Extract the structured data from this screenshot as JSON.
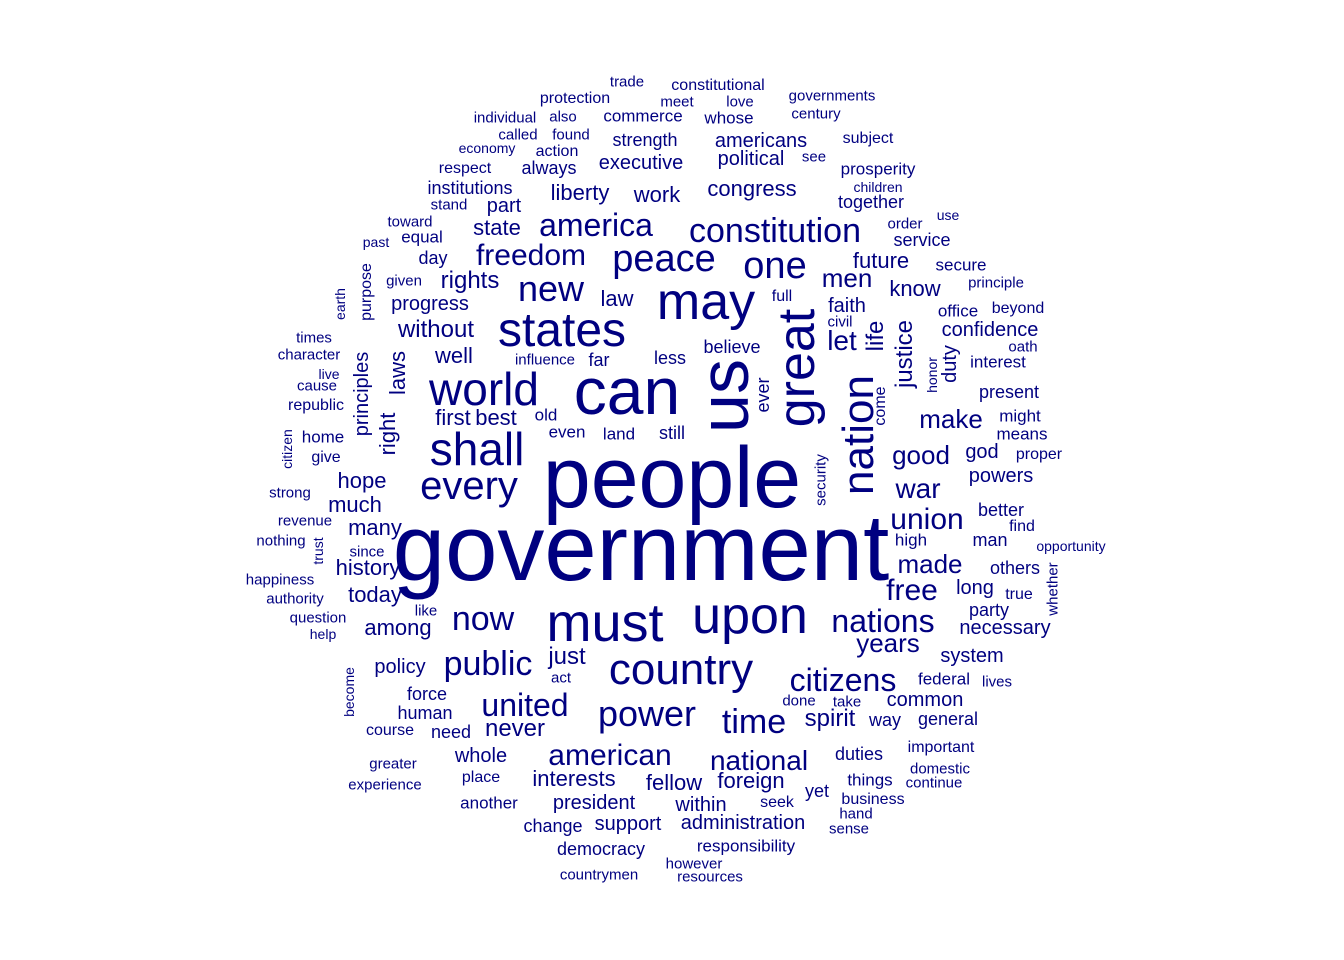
{
  "color": "#000080",
  "words": [
    {
      "text": "government",
      "weight": 100
    },
    {
      "text": "people",
      "weight": 92
    },
    {
      "text": "can",
      "weight": 68
    },
    {
      "text": "us",
      "weight": 64
    },
    {
      "text": "must",
      "weight": 56
    },
    {
      "text": "may",
      "weight": 52
    },
    {
      "text": "states",
      "weight": 50
    },
    {
      "text": "upon",
      "weight": 52
    },
    {
      "text": "great",
      "weight": 52
    },
    {
      "text": "nation",
      "weight": 46
    },
    {
      "text": "world",
      "weight": 46
    },
    {
      "text": "shall",
      "weight": 46
    },
    {
      "text": "country",
      "weight": 44
    },
    {
      "text": "every",
      "weight": 40
    },
    {
      "text": "one",
      "weight": 38
    },
    {
      "text": "peace",
      "weight": 38
    },
    {
      "text": "new",
      "weight": 36
    },
    {
      "text": "power",
      "weight": 36
    },
    {
      "text": "constitution",
      "weight": 34
    },
    {
      "text": "public",
      "weight": 34
    },
    {
      "text": "now",
      "weight": 34
    },
    {
      "text": "time",
      "weight": 34
    },
    {
      "text": "citizens",
      "weight": 32
    },
    {
      "text": "nations",
      "weight": 32
    },
    {
      "text": "america",
      "weight": 32
    },
    {
      "text": "freedom",
      "weight": 30
    },
    {
      "text": "united",
      "weight": 32
    },
    {
      "text": "american",
      "weight": 30
    },
    {
      "text": "national",
      "weight": 28
    },
    {
      "text": "union",
      "weight": 28
    },
    {
      "text": "free",
      "weight": 30
    },
    {
      "text": "war",
      "weight": 28
    },
    {
      "text": "made",
      "weight": 26
    },
    {
      "text": "good",
      "weight": 26
    },
    {
      "text": "make",
      "weight": 26
    },
    {
      "text": "let",
      "weight": 28
    },
    {
      "text": "justice",
      "weight": 24
    },
    {
      "text": "life",
      "weight": 24
    },
    {
      "text": "men",
      "weight": 26
    },
    {
      "text": "years",
      "weight": 26
    },
    {
      "text": "spirit",
      "weight": 24
    },
    {
      "text": "rights",
      "weight": 24
    },
    {
      "text": "laws",
      "weight": 22
    },
    {
      "text": "right",
      "weight": 22
    },
    {
      "text": "principles",
      "weight": 20
    },
    {
      "text": "just",
      "weight": 24
    },
    {
      "text": "never",
      "weight": 24
    },
    {
      "text": "hope",
      "weight": 22
    },
    {
      "text": "much",
      "weight": 22
    },
    {
      "text": "many",
      "weight": 22
    },
    {
      "text": "history",
      "weight": 22
    },
    {
      "text": "today",
      "weight": 22
    },
    {
      "text": "among",
      "weight": 22
    },
    {
      "text": "liberty",
      "weight": 22
    },
    {
      "text": "work",
      "weight": 22
    },
    {
      "text": "congress",
      "weight": 22
    },
    {
      "text": "executive",
      "weight": 20
    },
    {
      "text": "political",
      "weight": 20
    },
    {
      "text": "americans",
      "weight": 20
    },
    {
      "text": "strength",
      "weight": 18
    },
    {
      "text": "institutions",
      "weight": 18
    },
    {
      "text": "state",
      "weight": 22
    },
    {
      "text": "part",
      "weight": 20
    },
    {
      "text": "law",
      "weight": 22
    },
    {
      "text": "future",
      "weight": 22
    },
    {
      "text": "know",
      "weight": 22
    },
    {
      "text": "faith",
      "weight": 20
    },
    {
      "text": "confidence",
      "weight": 20
    },
    {
      "text": "duty",
      "weight": 20
    },
    {
      "text": "without",
      "weight": 24
    },
    {
      "text": "well",
      "weight": 22
    },
    {
      "text": "progress",
      "weight": 20
    },
    {
      "text": "first",
      "weight": 22
    },
    {
      "text": "best",
      "weight": 22
    },
    {
      "text": "less",
      "weight": 18
    },
    {
      "text": "believe",
      "weight": 18
    },
    {
      "text": "ever",
      "weight": 18
    },
    {
      "text": "interests",
      "weight": 22
    },
    {
      "text": "fellow",
      "weight": 22
    },
    {
      "text": "foreign",
      "weight": 22
    },
    {
      "text": "whole",
      "weight": 20
    },
    {
      "text": "president",
      "weight": 20
    },
    {
      "text": "within",
      "weight": 20
    },
    {
      "text": "administration",
      "weight": 20
    },
    {
      "text": "support",
      "weight": 20
    },
    {
      "text": "change",
      "weight": 18
    },
    {
      "text": "democracy",
      "weight": 18
    },
    {
      "text": "responsibility",
      "weight": 17
    },
    {
      "text": "policy",
      "weight": 20
    },
    {
      "text": "force",
      "weight": 18
    },
    {
      "text": "human",
      "weight": 18
    },
    {
      "text": "need",
      "weight": 18
    },
    {
      "text": "course",
      "weight": 16
    },
    {
      "text": "common",
      "weight": 20
    },
    {
      "text": "way",
      "weight": 18
    },
    {
      "text": "general",
      "weight": 18
    },
    {
      "text": "federal",
      "weight": 17
    },
    {
      "text": "system",
      "weight": 20
    },
    {
      "text": "necessary",
      "weight": 20
    },
    {
      "text": "party",
      "weight": 18
    },
    {
      "text": "long",
      "weight": 20
    },
    {
      "text": "others",
      "weight": 18
    },
    {
      "text": "better",
      "weight": 18
    },
    {
      "text": "man",
      "weight": 18
    },
    {
      "text": "powers",
      "weight": 20
    },
    {
      "text": "god",
      "weight": 20
    },
    {
      "text": "present",
      "weight": 18
    },
    {
      "text": "means",
      "weight": 17
    },
    {
      "text": "might",
      "weight": 17
    },
    {
      "text": "interest",
      "weight": 17
    },
    {
      "text": "office",
      "weight": 17
    },
    {
      "text": "secure",
      "weight": 17
    },
    {
      "text": "service",
      "weight": 18
    },
    {
      "text": "together",
      "weight": 18
    },
    {
      "text": "prosperity",
      "weight": 17
    },
    {
      "text": "subject",
      "weight": 16
    },
    {
      "text": "century",
      "weight": 15
    },
    {
      "text": "governments",
      "weight": 15
    },
    {
      "text": "constitutional",
      "weight": 16
    },
    {
      "text": "trade",
      "weight": 15
    },
    {
      "text": "protection",
      "weight": 16
    },
    {
      "text": "meet",
      "weight": 15
    },
    {
      "text": "love",
      "weight": 15
    },
    {
      "text": "whose",
      "weight": 17
    },
    {
      "text": "commerce",
      "weight": 17
    },
    {
      "text": "individual",
      "weight": 15
    },
    {
      "text": "also",
      "weight": 15
    },
    {
      "text": "called",
      "weight": 15
    },
    {
      "text": "found",
      "weight": 15
    },
    {
      "text": "economy",
      "weight": 14
    },
    {
      "text": "action",
      "weight": 16
    },
    {
      "text": "respect",
      "weight": 16
    },
    {
      "text": "always",
      "weight": 18
    },
    {
      "text": "see",
      "weight": 15
    },
    {
      "text": "children",
      "weight": 14
    },
    {
      "text": "stand",
      "weight": 15
    },
    {
      "text": "toward",
      "weight": 15
    },
    {
      "text": "equal",
      "weight": 17
    },
    {
      "text": "past",
      "weight": 14
    },
    {
      "text": "order",
      "weight": 15
    },
    {
      "text": "use",
      "weight": 14
    },
    {
      "text": "day",
      "weight": 18
    },
    {
      "text": "given",
      "weight": 15
    },
    {
      "text": "purpose",
      "weight": 16
    },
    {
      "text": "earth",
      "weight": 14
    },
    {
      "text": "times",
      "weight": 15
    },
    {
      "text": "character",
      "weight": 15
    },
    {
      "text": "live",
      "weight": 14
    },
    {
      "text": "cause",
      "weight": 15
    },
    {
      "text": "republic",
      "weight": 16
    },
    {
      "text": "citizen",
      "weight": 14
    },
    {
      "text": "home",
      "weight": 17
    },
    {
      "text": "give",
      "weight": 16
    },
    {
      "text": "strong",
      "weight": 15
    },
    {
      "text": "revenue",
      "weight": 15
    },
    {
      "text": "nothing",
      "weight": 15
    },
    {
      "text": "trust",
      "weight": 14
    },
    {
      "text": "since",
      "weight": 15
    },
    {
      "text": "happiness",
      "weight": 15
    },
    {
      "text": "authority",
      "weight": 15
    },
    {
      "text": "question",
      "weight": 15
    },
    {
      "text": "help",
      "weight": 14
    },
    {
      "text": "like",
      "weight": 15
    },
    {
      "text": "become",
      "weight": 14
    },
    {
      "text": "act",
      "weight": 15
    },
    {
      "text": "greater",
      "weight": 15
    },
    {
      "text": "experience",
      "weight": 15
    },
    {
      "text": "place",
      "weight": 16
    },
    {
      "text": "another",
      "weight": 17
    },
    {
      "text": "countrymen",
      "weight": 15
    },
    {
      "text": "however",
      "weight": 15
    },
    {
      "text": "resources",
      "weight": 15
    },
    {
      "text": "hand",
      "weight": 15
    },
    {
      "text": "sense",
      "weight": 15
    },
    {
      "text": "business",
      "weight": 16
    },
    {
      "text": "seek",
      "weight": 16
    },
    {
      "text": "yet",
      "weight": 18
    },
    {
      "text": "things",
      "weight": 17
    },
    {
      "text": "duties",
      "weight": 18
    },
    {
      "text": "important",
      "weight": 16
    },
    {
      "text": "domestic",
      "weight": 15
    },
    {
      "text": "continue",
      "weight": 15
    },
    {
      "text": "done",
      "weight": 15
    },
    {
      "text": "take",
      "weight": 15
    },
    {
      "text": "lives",
      "weight": 15
    },
    {
      "text": "true",
      "weight": 16
    },
    {
      "text": "whether",
      "weight": 15
    },
    {
      "text": "opportunity",
      "weight": 14
    },
    {
      "text": "find",
      "weight": 16
    },
    {
      "text": "high",
      "weight": 17
    },
    {
      "text": "proper",
      "weight": 16
    },
    {
      "text": "oath",
      "weight": 15
    },
    {
      "text": "beyond",
      "weight": 16
    },
    {
      "text": "principle",
      "weight": 15
    },
    {
      "text": "honor",
      "weight": 14
    },
    {
      "text": "come",
      "weight": 16
    },
    {
      "text": "security",
      "weight": 15
    },
    {
      "text": "civil",
      "weight": 15
    },
    {
      "text": "full",
      "weight": 16
    },
    {
      "text": "influence",
      "weight": 15
    },
    {
      "text": "far",
      "weight": 18
    },
    {
      "text": "old",
      "weight": 17
    },
    {
      "text": "even",
      "weight": 17
    },
    {
      "text": "land",
      "weight": 17
    },
    {
      "text": "still",
      "weight": 18
    }
  ]
}
